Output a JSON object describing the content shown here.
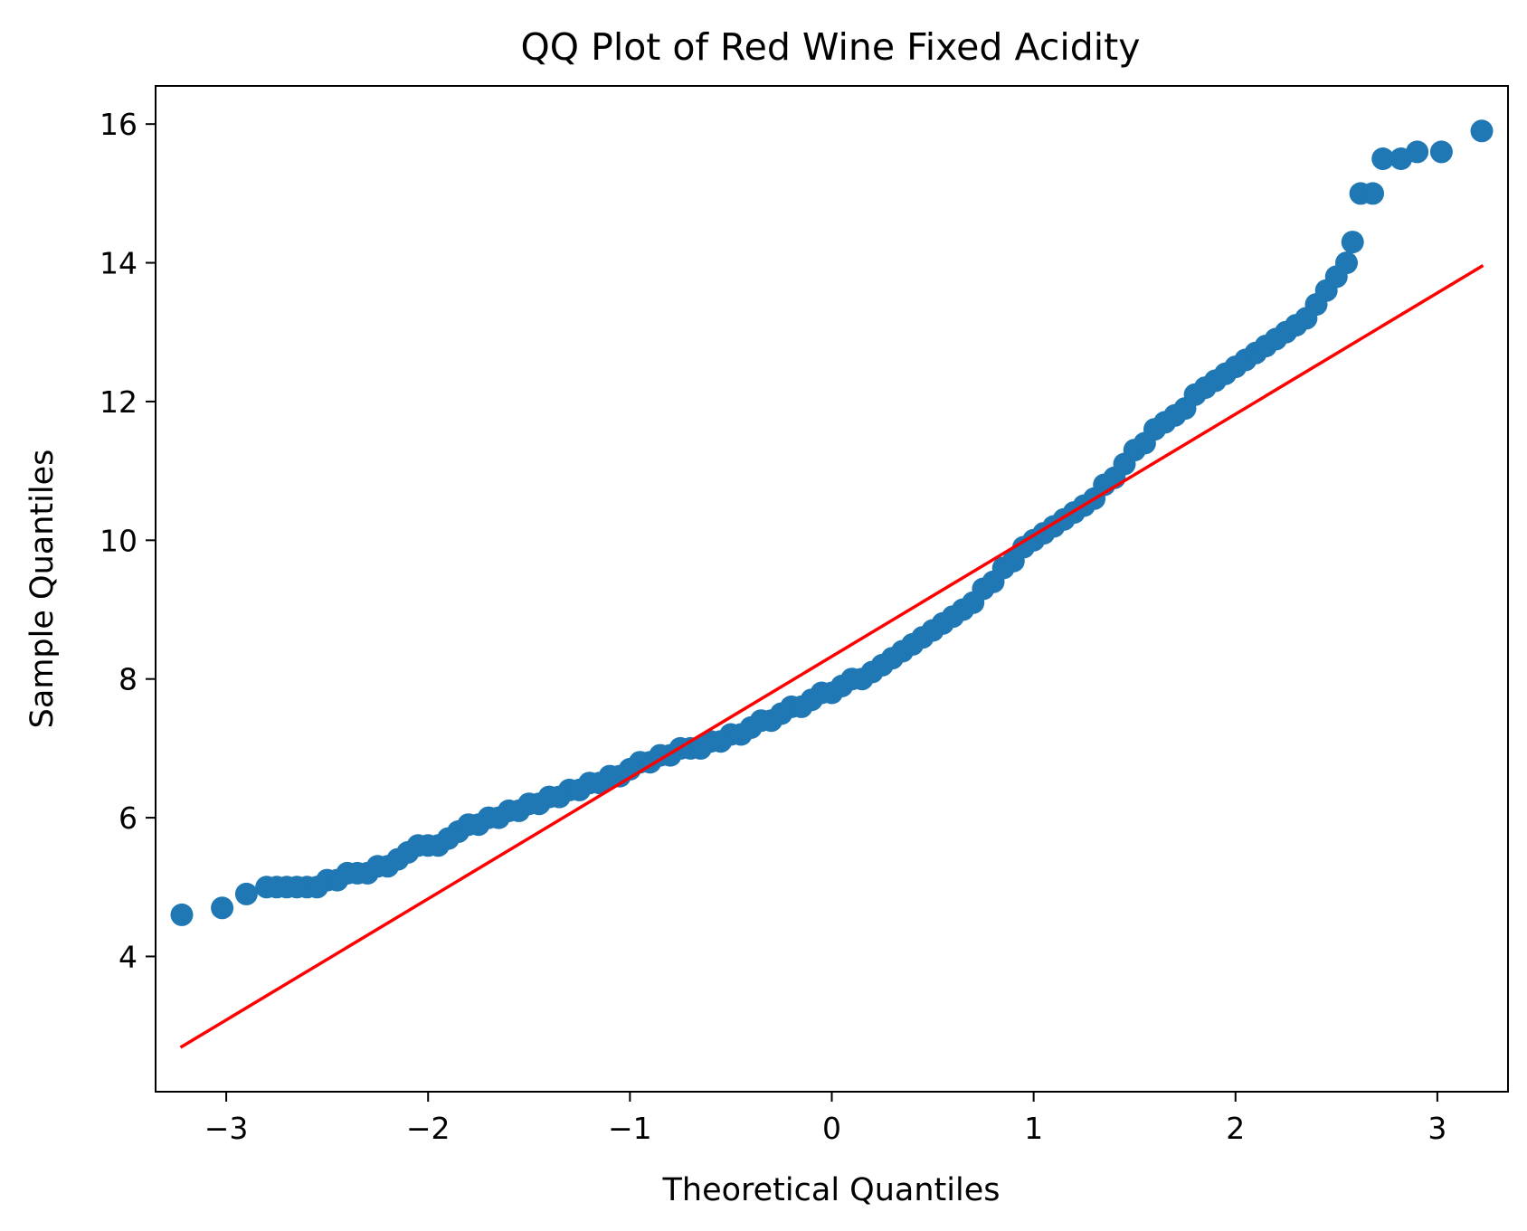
{
  "chart_data": {
    "type": "scatter",
    "title": "QQ Plot of Red Wine Fixed Acidity",
    "xlabel": "Theoretical Quantiles",
    "ylabel": "Sample Quantiles",
    "xlim": [
      -3.35,
      3.35
    ],
    "ylim": [
      2.05,
      16.55
    ],
    "xticks": [
      -3,
      -2,
      -1,
      0,
      1,
      2,
      3
    ],
    "xtick_labels": [
      "−3",
      "−2",
      "−1",
      "0",
      "1",
      "2",
      "3"
    ],
    "yticks": [
      4,
      6,
      8,
      10,
      12,
      14,
      16
    ],
    "ytick_labels": [
      "4",
      "6",
      "8",
      "10",
      "12",
      "14",
      "16"
    ],
    "grid": false,
    "legend": "none",
    "colors": {
      "points": "#1f77b4",
      "reference_line": "#ff0000"
    },
    "reference_line": {
      "x": [
        -3.22,
        3.22
      ],
      "y": [
        2.7,
        13.95
      ]
    },
    "series": [
      {
        "values": [
          [
            -3.22,
            4.6
          ],
          [
            -3.02,
            4.7
          ],
          [
            -2.9,
            4.9
          ],
          [
            -2.8,
            5.0
          ],
          [
            -2.75,
            5.0
          ],
          [
            -2.7,
            5.0
          ],
          [
            -2.65,
            5.0
          ],
          [
            -2.6,
            5.0
          ],
          [
            -2.55,
            5.0
          ],
          [
            -2.5,
            5.1
          ],
          [
            -2.45,
            5.1
          ],
          [
            -2.4,
            5.2
          ],
          [
            -2.35,
            5.2
          ],
          [
            -2.3,
            5.2
          ],
          [
            -2.25,
            5.3
          ],
          [
            -2.2,
            5.3
          ],
          [
            -2.15,
            5.4
          ],
          [
            -2.1,
            5.5
          ],
          [
            -2.05,
            5.6
          ],
          [
            -2.0,
            5.6
          ],
          [
            -1.95,
            5.6
          ],
          [
            -1.9,
            5.7
          ],
          [
            -1.85,
            5.8
          ],
          [
            -1.8,
            5.9
          ],
          [
            -1.75,
            5.9
          ],
          [
            -1.7,
            6.0
          ],
          [
            -1.65,
            6.0
          ],
          [
            -1.6,
            6.1
          ],
          [
            -1.55,
            6.1
          ],
          [
            -1.5,
            6.2
          ],
          [
            -1.45,
            6.2
          ],
          [
            -1.4,
            6.3
          ],
          [
            -1.35,
            6.3
          ],
          [
            -1.3,
            6.4
          ],
          [
            -1.25,
            6.4
          ],
          [
            -1.2,
            6.5
          ],
          [
            -1.15,
            6.5
          ],
          [
            -1.1,
            6.6
          ],
          [
            -1.05,
            6.6
          ],
          [
            -1.0,
            6.7
          ],
          [
            -0.95,
            6.8
          ],
          [
            -0.9,
            6.8
          ],
          [
            -0.85,
            6.9
          ],
          [
            -0.8,
            6.9
          ],
          [
            -0.75,
            7.0
          ],
          [
            -0.7,
            7.0
          ],
          [
            -0.65,
            7.0
          ],
          [
            -0.6,
            7.1
          ],
          [
            -0.55,
            7.1
          ],
          [
            -0.5,
            7.2
          ],
          [
            -0.45,
            7.2
          ],
          [
            -0.4,
            7.3
          ],
          [
            -0.35,
            7.4
          ],
          [
            -0.3,
            7.4
          ],
          [
            -0.25,
            7.5
          ],
          [
            -0.2,
            7.6
          ],
          [
            -0.15,
            7.6
          ],
          [
            -0.1,
            7.7
          ],
          [
            -0.05,
            7.8
          ],
          [
            0.0,
            7.8
          ],
          [
            0.05,
            7.9
          ],
          [
            0.1,
            8.0
          ],
          [
            0.15,
            8.0
          ],
          [
            0.2,
            8.1
          ],
          [
            0.25,
            8.2
          ],
          [
            0.3,
            8.3
          ],
          [
            0.35,
            8.4
          ],
          [
            0.4,
            8.5
          ],
          [
            0.45,
            8.6
          ],
          [
            0.5,
            8.7
          ],
          [
            0.55,
            8.8
          ],
          [
            0.6,
            8.9
          ],
          [
            0.65,
            9.0
          ],
          [
            0.7,
            9.1
          ],
          [
            0.75,
            9.3
          ],
          [
            0.8,
            9.4
          ],
          [
            0.85,
            9.6
          ],
          [
            0.9,
            9.7
          ],
          [
            0.95,
            9.9
          ],
          [
            1.0,
            10.0
          ],
          [
            1.05,
            10.1
          ],
          [
            1.1,
            10.2
          ],
          [
            1.15,
            10.3
          ],
          [
            1.2,
            10.4
          ],
          [
            1.25,
            10.5
          ],
          [
            1.3,
            10.6
          ],
          [
            1.35,
            10.8
          ],
          [
            1.4,
            10.9
          ],
          [
            1.45,
            11.1
          ],
          [
            1.5,
            11.3
          ],
          [
            1.55,
            11.4
          ],
          [
            1.6,
            11.6
          ],
          [
            1.65,
            11.7
          ],
          [
            1.7,
            11.8
          ],
          [
            1.75,
            11.9
          ],
          [
            1.8,
            12.1
          ],
          [
            1.85,
            12.2
          ],
          [
            1.9,
            12.3
          ],
          [
            1.95,
            12.4
          ],
          [
            2.0,
            12.5
          ],
          [
            2.05,
            12.6
          ],
          [
            2.1,
            12.7
          ],
          [
            2.15,
            12.8
          ],
          [
            2.2,
            12.9
          ],
          [
            2.25,
            13.0
          ],
          [
            2.3,
            13.1
          ],
          [
            2.35,
            13.2
          ],
          [
            2.4,
            13.4
          ],
          [
            2.45,
            13.6
          ],
          [
            2.5,
            13.8
          ],
          [
            2.55,
            14.0
          ],
          [
            2.58,
            14.3
          ],
          [
            2.62,
            15.0
          ],
          [
            2.68,
            15.0
          ],
          [
            2.73,
            15.5
          ],
          [
            2.82,
            15.5
          ],
          [
            2.9,
            15.6
          ],
          [
            3.02,
            15.6
          ],
          [
            3.22,
            15.9
          ]
        ]
      }
    ]
  }
}
